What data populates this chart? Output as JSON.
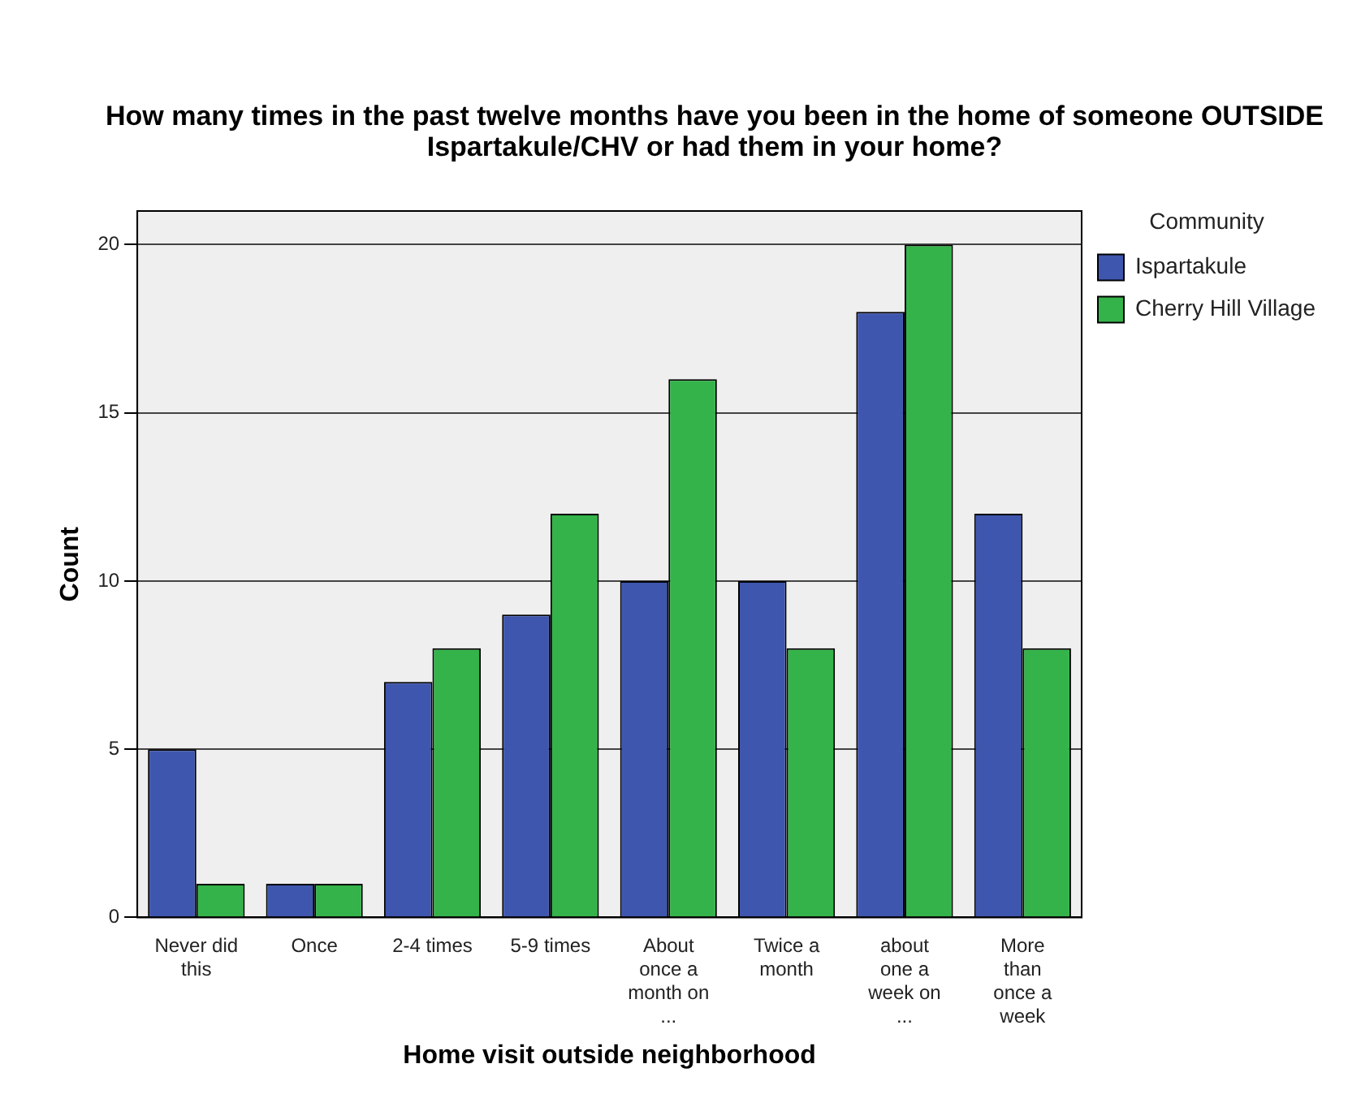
{
  "chart_data": {
    "type": "bar",
    "title": "How many times in the past twelve months have you been in the home of someone OUTSIDE Ispartakule/CHV or had them in your home?",
    "xlabel": "Home visit outside neighborhood",
    "ylabel": "Count",
    "legend_title": "Community",
    "legend": "right",
    "categories": [
      "Never did this",
      "Once",
      "2-4 times",
      "5-9 times",
      "About once a month on ...",
      "Twice a month",
      "about one a week on ...",
      "More than once a week"
    ],
    "series": [
      {
        "name": "Ispartakule",
        "color": "#3f56ae",
        "values": [
          5,
          1,
          7,
          9,
          10,
          10,
          18,
          12
        ]
      },
      {
        "name": "Cherry Hill Village",
        "color": "#34b34a",
        "values": [
          1,
          1,
          8,
          12,
          16,
          8,
          20,
          8
        ]
      }
    ],
    "ylim": [
      0,
      21
    ],
    "yticks": [
      0,
      5,
      10,
      15,
      20
    ],
    "grid": "y"
  }
}
